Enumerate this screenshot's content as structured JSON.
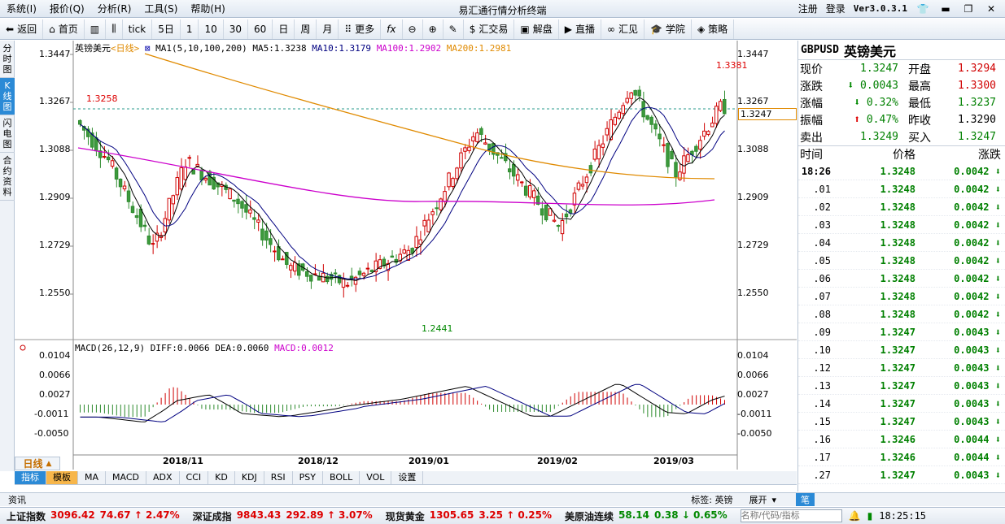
{
  "app": {
    "title": "易汇通行情分析终端",
    "register": "注册",
    "login": "登录",
    "version": "Ver3.0.3.1"
  },
  "menu": [
    "系统(I)",
    "报价(Q)",
    "分析(R)",
    "工具(S)",
    "帮助(H)"
  ],
  "toolbar": {
    "back": "返回",
    "home": "首页",
    "tick": "tick",
    "days5": "5日",
    "n1": "1",
    "n10": "10",
    "n30": "30",
    "n60": "60",
    "day": "日",
    "week": "周",
    "month": "月",
    "more": "更多",
    "huijiaoyi": "汇交易",
    "jiepan": "解盘",
    "zhibo": "直播",
    "huijian": "汇见",
    "xueyuan": "学院",
    "celue": "策略"
  },
  "sidetabs": [
    "分时图",
    "K线图",
    "闪电图",
    "合约资料"
  ],
  "chart": {
    "name": "英镑美元",
    "period": "<日线>",
    "ma_label": "MA1(5,10,100,200)",
    "ma5": "MA5:1.3238",
    "ma10": "MA10:1.3179",
    "ma100": "MA100:1.2902",
    "ma200": "MA200:1.2981",
    "high_mark": "1.3381",
    "low_mark": "1.2441",
    "left_mark": "1.3258",
    "cur_price": "1.3247",
    "yticks": [
      "1.3447",
      "1.3267",
      "1.3088",
      "1.2909",
      "1.2729",
      "1.2550"
    ],
    "xticks": [
      "2018/11",
      "2018/12",
      "2019/01",
      "2019/02",
      "2019/03"
    ]
  },
  "macd": {
    "label": "MACD(26,12,9)",
    "diff": "DIFF:0.0066",
    "dea": "DEA:0.0060",
    "macd": "MACD:0.0012",
    "yticks": [
      "0.0104",
      "0.0066",
      "0.0027",
      "-0.0011",
      "-0.0050"
    ]
  },
  "period_button": "日线",
  "indicators": [
    "指标",
    "模板",
    "MA",
    "MACD",
    "ADX",
    "CCI",
    "KD",
    "KDJ",
    "RSI",
    "PSY",
    "BOLL",
    "VOL",
    "设置"
  ],
  "news": {
    "label": "资讯",
    "tag": "标签: 英镑",
    "expand": "展开",
    "pen": "笔"
  },
  "quote": {
    "code": "GBPUSD",
    "cn": "英镑美元",
    "rows": [
      {
        "a": "现价",
        "b": "1.3247",
        "bc": "green",
        "c": "开盘",
        "d": "1.3294",
        "dc": "red"
      },
      {
        "a": "涨跌",
        "b": "0.0043",
        "bc": "green",
        "ar": "down",
        "c": "最高",
        "d": "1.3300",
        "dc": "red"
      },
      {
        "a": "涨幅",
        "b": "0.32%",
        "bc": "green",
        "ar": "down",
        "c": "最低",
        "d": "1.3237",
        "dc": "green"
      },
      {
        "a": "振幅",
        "b": "0.47%",
        "bc": "green",
        "ar": "up",
        "c": "昨收",
        "d": "1.3290",
        "dc": "blk"
      },
      {
        "a": "卖出",
        "b": "1.3249",
        "bc": "green",
        "c": "买入",
        "d": "1.3247",
        "dc": "green"
      }
    ]
  },
  "ticks_header": {
    "time": "时间",
    "price": "价格",
    "change": "涨跌"
  },
  "ticks": [
    {
      "t": "18:26",
      "p": "1.3248",
      "c": "0.0042"
    },
    {
      "t": ".01",
      "p": "1.3248",
      "c": "0.0042"
    },
    {
      "t": ".02",
      "p": "1.3248",
      "c": "0.0042"
    },
    {
      "t": ".03",
      "p": "1.3248",
      "c": "0.0042"
    },
    {
      "t": ".04",
      "p": "1.3248",
      "c": "0.0042"
    },
    {
      "t": ".05",
      "p": "1.3248",
      "c": "0.0042"
    },
    {
      "t": ".06",
      "p": "1.3248",
      "c": "0.0042"
    },
    {
      "t": ".07",
      "p": "1.3248",
      "c": "0.0042"
    },
    {
      "t": ".08",
      "p": "1.3248",
      "c": "0.0042"
    },
    {
      "t": ".09",
      "p": "1.3247",
      "c": "0.0043"
    },
    {
      "t": ".10",
      "p": "1.3247",
      "c": "0.0043"
    },
    {
      "t": ".12",
      "p": "1.3247",
      "c": "0.0043"
    },
    {
      "t": ".13",
      "p": "1.3247",
      "c": "0.0043"
    },
    {
      "t": ".14",
      "p": "1.3247",
      "c": "0.0043"
    },
    {
      "t": ".15",
      "p": "1.3247",
      "c": "0.0043"
    },
    {
      "t": ".16",
      "p": "1.3246",
      "c": "0.0044"
    },
    {
      "t": ".17",
      "p": "1.3246",
      "c": "0.0044"
    },
    {
      "t": ".27",
      "p": "1.3247",
      "c": "0.0043"
    }
  ],
  "status": [
    {
      "n": "上证指数",
      "v": "3096.42",
      "d": "74.67 ↑ 2.47%"
    },
    {
      "n": "深证成指",
      "v": "9843.43",
      "d": "292.89 ↑ 3.07%"
    },
    {
      "n": "现货黄金",
      "v": "1305.65",
      "d": "3.25 ↑ 0.25%"
    },
    {
      "n": "美原油连续",
      "v": "58.14",
      "d": "0.38 ↓ 0.65%"
    }
  ],
  "search_placeholder": "名称/代码/指标",
  "clock": "18:25:15",
  "colors": {
    "up": "#d00000",
    "down": "#008000",
    "ma100": "#cc00cc",
    "ma200": "#e08a00",
    "ma5": "#000000",
    "ma10": "#000080"
  }
}
